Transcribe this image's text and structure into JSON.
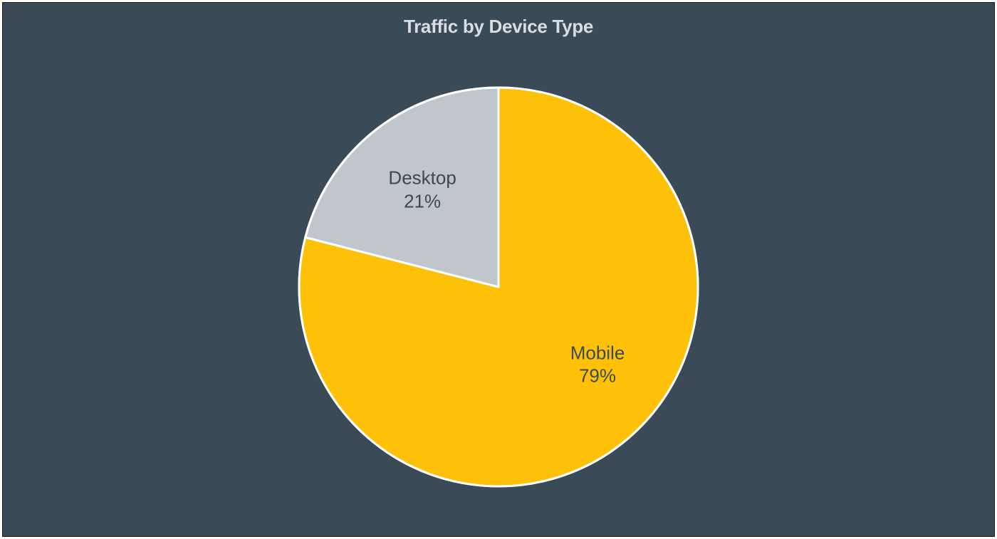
{
  "chart": {
    "type": "pie",
    "title": "Traffic by Device Type",
    "title_color": "#d7dde2",
    "title_fontsize": 26,
    "title_fontweight": 700,
    "background_color": "#3a4a57",
    "border_color": "#1a1a1a",
    "radius": 280,
    "stroke_color": "#ffffff",
    "stroke_width": 3,
    "start_angle_deg": 0,
    "slices": [
      {
        "label": "Mobile",
        "value": 79,
        "pct_text": "79%",
        "color": "#ffc107",
        "label_color": "#3a4a57",
        "label_fontsize": 26,
        "label_offset_r": 0.63,
        "label_offset_angle_deg": 128
      },
      {
        "label": "Desktop",
        "value": 21,
        "pct_text": "21%",
        "color": "#c0c6cc",
        "label_color": "#3a4a57",
        "label_fontsize": 26,
        "label_offset_r": 0.62,
        "label_offset_angle_deg": 322
      }
    ]
  }
}
